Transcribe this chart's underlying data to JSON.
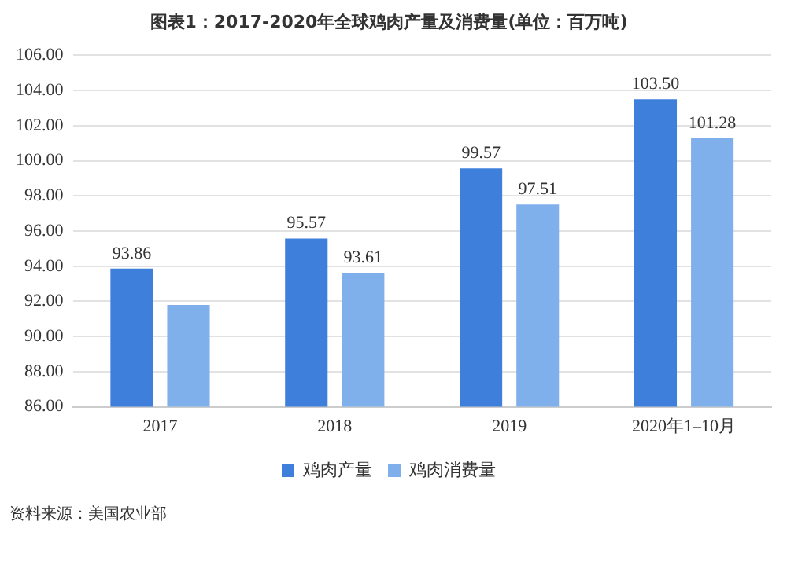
{
  "chart_data": {
    "type": "bar",
    "title": "图表1：2017-2020年全球鸡肉产量及消费量(单位：百万吨)",
    "categories": [
      "2017",
      "2018",
      "2019",
      "2020年1–10月"
    ],
    "series": [
      {
        "name": "鸡肉产量",
        "color": "#3f7fdc",
        "values": [
          93.86,
          95.57,
          99.57,
          103.5
        ],
        "value_labels": [
          "93.86",
          "95.57",
          "99.57",
          "103.50"
        ]
      },
      {
        "name": "鸡肉消费量",
        "color": "#7fb0ec",
        "values": [
          91.8,
          93.61,
          97.51,
          101.28
        ],
        "value_labels": [
          null,
          "93.61",
          "97.51",
          "101.28"
        ]
      }
    ],
    "ylim": [
      86,
      106
    ],
    "yticks": [
      {
        "value": 86,
        "label": "86.00"
      },
      {
        "value": 88,
        "label": "88.00"
      },
      {
        "value": 90,
        "label": "90.00"
      },
      {
        "value": 92,
        "label": "92.00"
      },
      {
        "value": 94,
        "label": "94.00"
      },
      {
        "value": 96,
        "label": "96.00"
      },
      {
        "value": 98,
        "label": "98.00"
      },
      {
        "value": 100,
        "label": "100.00"
      },
      {
        "value": 102,
        "label": "102.00"
      },
      {
        "value": 104,
        "label": "104.00"
      },
      {
        "value": 106,
        "label": "106.00"
      }
    ],
    "grid": "y",
    "legend": "bottom",
    "annotations": [
      "资料来源：美国农业部"
    ]
  }
}
